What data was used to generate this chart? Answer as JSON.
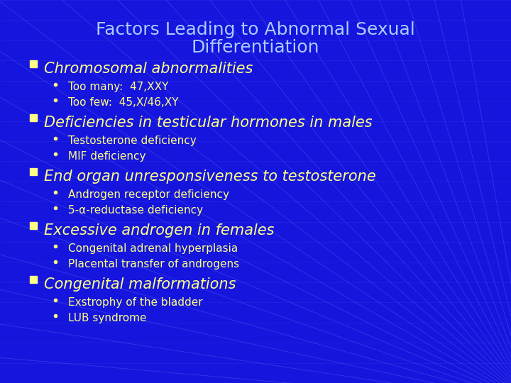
{
  "title_line1": "Factors Leading to Abnormal Sexual",
  "title_line2": "Differentiation",
  "title_color": "#AACCFF",
  "title_fontsize": 18,
  "background_color": "#1515DD",
  "bullet_color": "#FFFF88",
  "sub_bullet_color": "#FFFF88",
  "square_bullet_color": "#FFFF88",
  "items": [
    {
      "main": "Chromosomal abnormalities",
      "subs": [
        "Too many:  47,XXY",
        "Too few:  45,X/46,XY"
      ]
    },
    {
      "main": "Deficiencies in testicular hormones in males",
      "subs": [
        "Testosterone deficiency",
        "MIF deficiency"
      ]
    },
    {
      "main": "End organ unresponsiveness to testosterone",
      "subs": [
        "Androgen receptor deficiency",
        "5-α-reductase deficiency"
      ]
    },
    {
      "main": "Excessive androgen in females",
      "subs": [
        "Congenital adrenal hyperplasia",
        "Placental transfer of androgens"
      ]
    },
    {
      "main": "Congenital malformations",
      "subs": [
        "Exstrophy of the bladder",
        "LUB syndrome"
      ]
    }
  ],
  "main_fontsize": 15,
  "sub_fontsize": 11,
  "grid_color": "#4455EE",
  "grid_alpha": 0.5
}
